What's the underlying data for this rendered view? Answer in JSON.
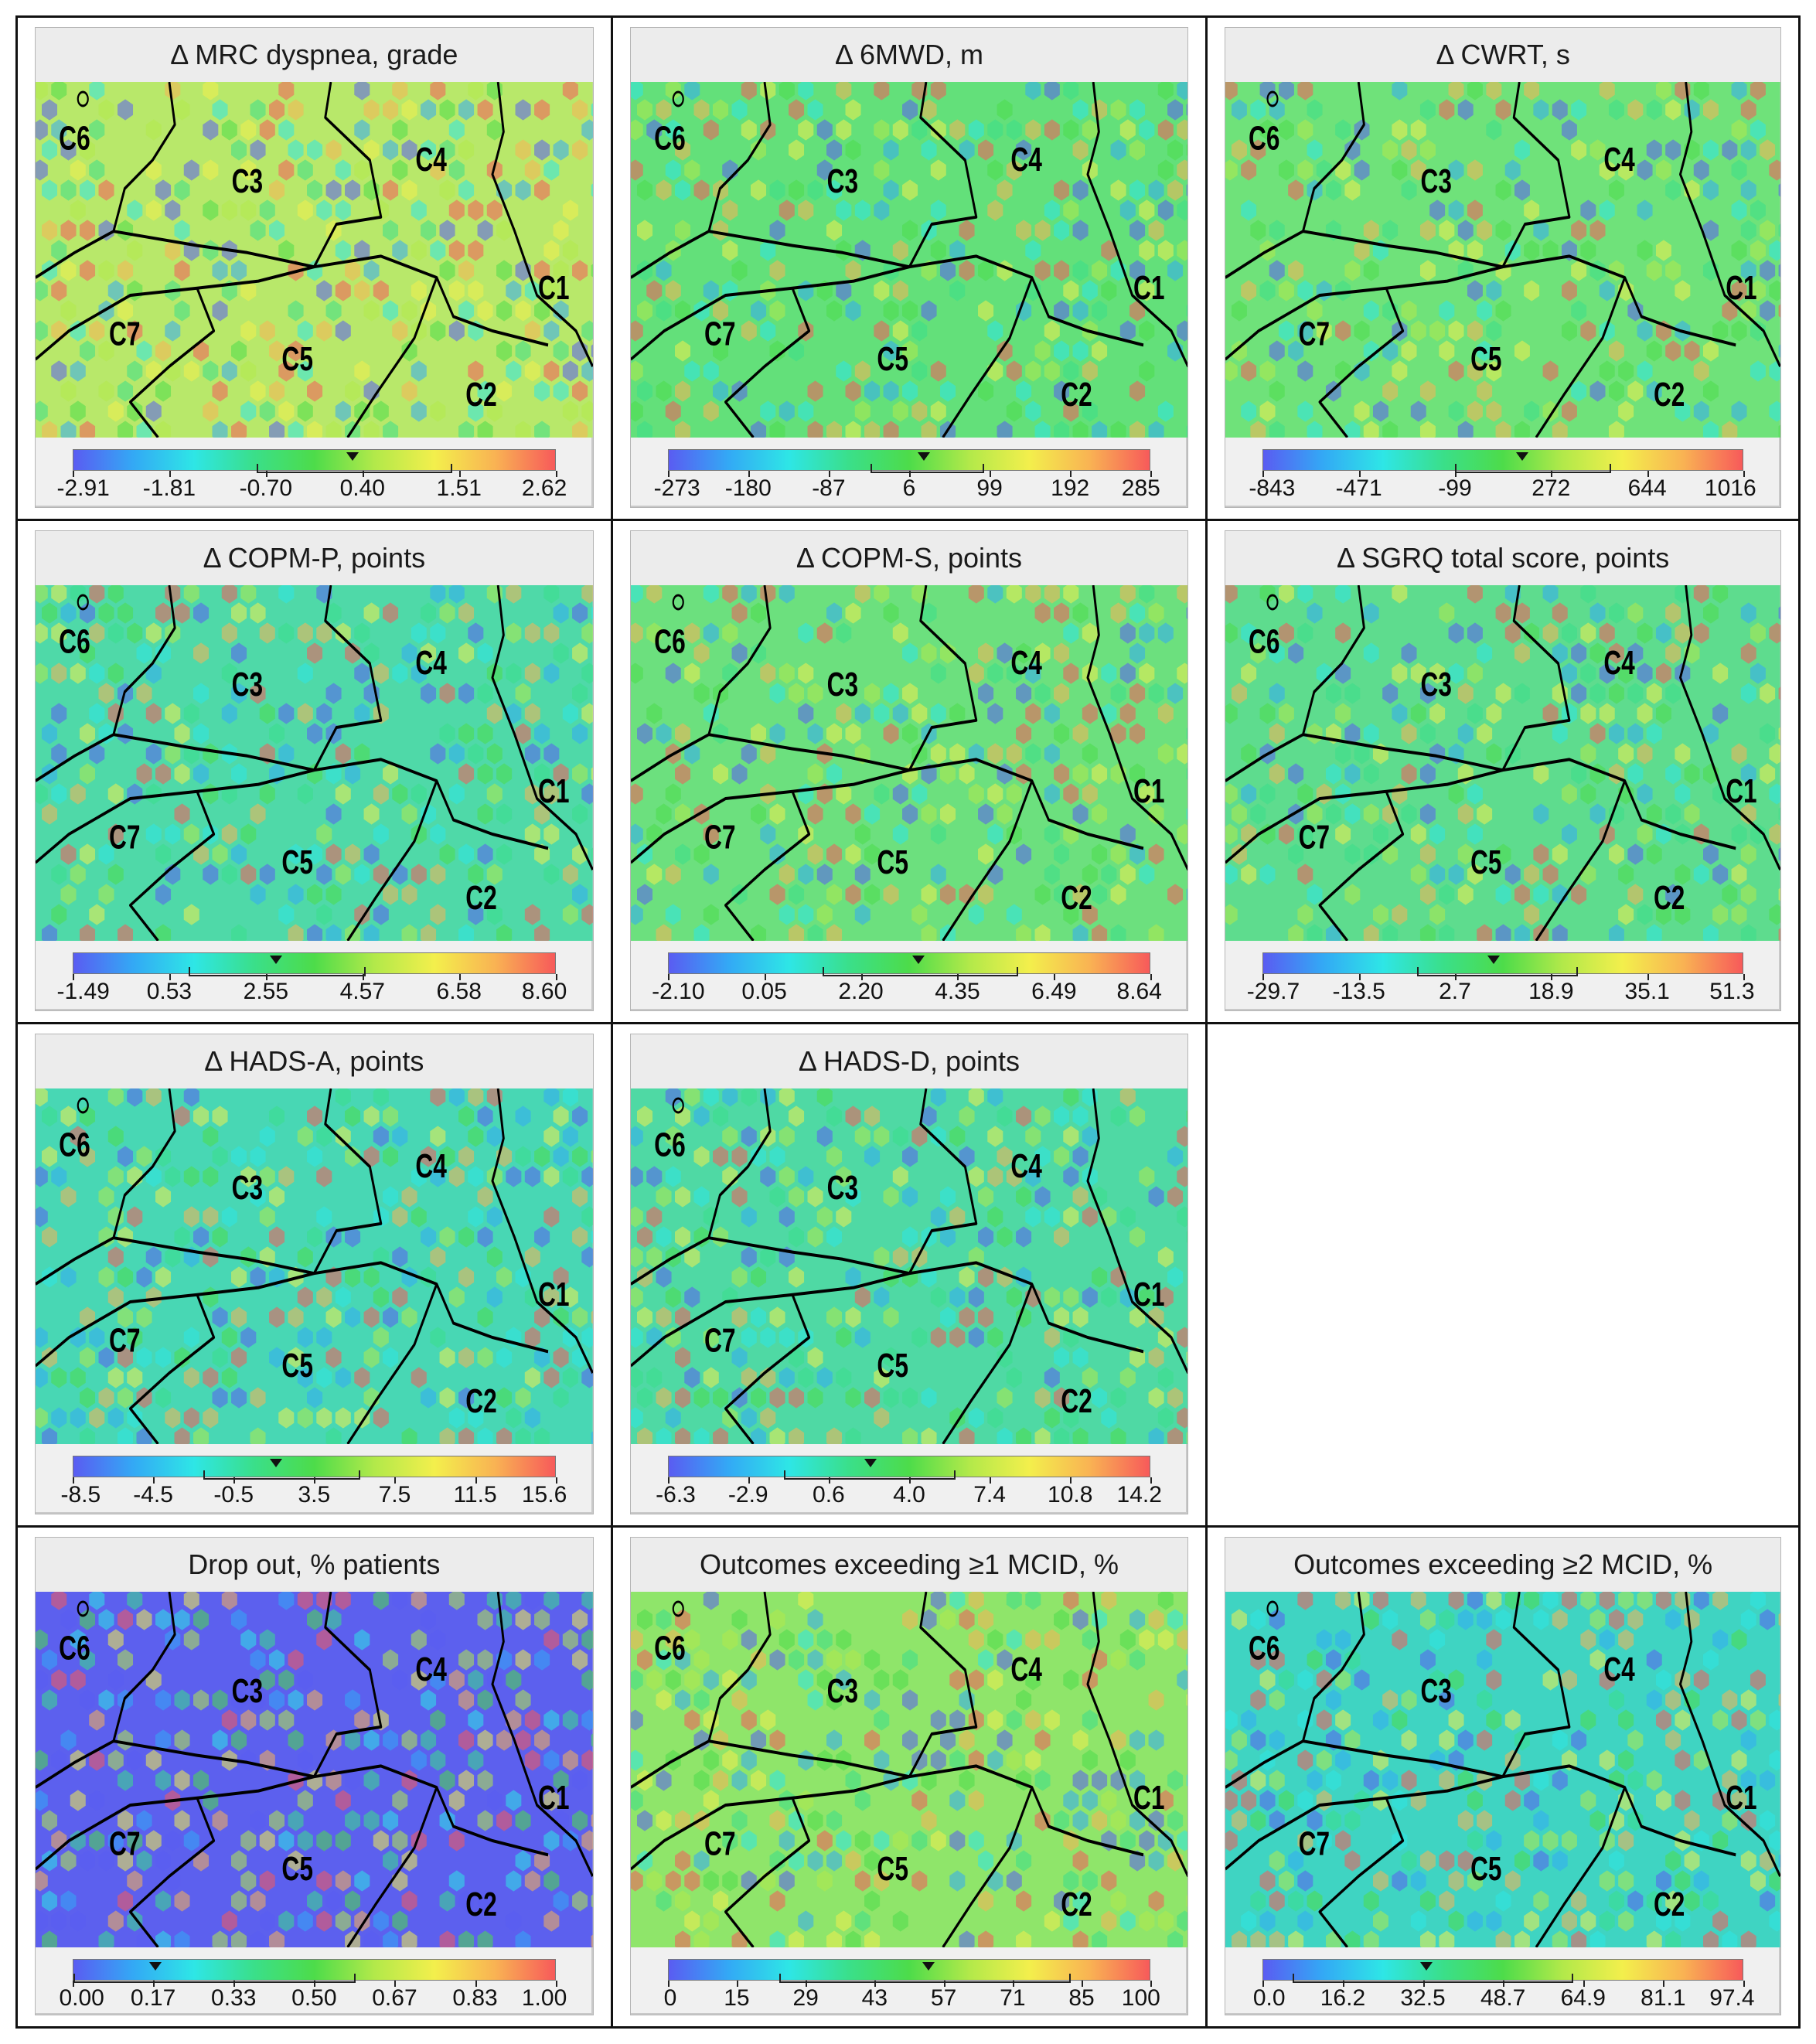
{
  "panels": [
    {
      "title": "Δ MRC dyspnea, grade",
      "ticks": [
        "-2.91",
        "-1.81",
        "-0.70",
        "0.40",
        "1.51",
        "2.62"
      ],
      "marker": 0.58,
      "range": [
        0.38,
        0.78
      ],
      "wash": "#b8e86a"
    },
    {
      "title": "Δ 6MWD, m",
      "ticks": [
        "-273",
        "-180",
        "-87",
        "6",
        "99",
        "192",
        "285"
      ],
      "marker": 0.53,
      "range": [
        0.42,
        0.65
      ],
      "wash": "#63e07a"
    },
    {
      "title": "Δ CWRT, s",
      "ticks": [
        "-843",
        "-471",
        "-99",
        "272",
        "644",
        "1016"
      ],
      "marker": 0.54,
      "range": [
        0.4,
        0.72
      ],
      "wash": "#6fe27a"
    },
    {
      "title": "Δ COPM-P, points",
      "ticks": [
        "-1.49",
        "0.53",
        "2.55",
        "4.57",
        "6.58",
        "8.60"
      ],
      "marker": 0.42,
      "range": [
        0.24,
        0.6
      ],
      "wash": "#4fd9a8"
    },
    {
      "title": "Δ COPM-S, points",
      "ticks": [
        "-2.10",
        "0.05",
        "2.20",
        "4.35",
        "6.49",
        "8.64"
      ],
      "marker": 0.52,
      "range": [
        0.32,
        0.72
      ],
      "wash": "#6ce07e"
    },
    {
      "title": "Δ SGRQ total score, points",
      "ticks": [
        "-29.7",
        "-13.5",
        "2.7",
        "18.9",
        "35.1",
        "51.3"
      ],
      "marker": 0.48,
      "range": [
        0.32,
        0.65
      ],
      "wash": "#5edc8e"
    },
    {
      "title": "Δ HADS-A, points",
      "ticks": [
        "-8.5",
        "-4.5",
        "-0.5",
        "3.5",
        "7.5",
        "11.5",
        "15.6"
      ],
      "marker": 0.42,
      "range": [
        0.27,
        0.59
      ],
      "wash": "#48d7b4"
    },
    {
      "title": "Δ HADS-D, points",
      "ticks": [
        "-6.3",
        "-2.9",
        "0.6",
        "4.0",
        "7.4",
        "10.8",
        "14.2"
      ],
      "marker": 0.42,
      "range": [
        0.24,
        0.59
      ],
      "wash": "#4fd9a4"
    },
    null,
    {
      "title": "Drop out, % patients",
      "ticks": [
        "0.00",
        "0.17",
        "0.33",
        "0.50",
        "0.67",
        "0.83",
        "1.00"
      ],
      "marker": 0.17,
      "range": [
        0.0,
        0.58
      ],
      "wash": "#5c60ee"
    },
    {
      "title": "Outcomes exceeding ≥1 MCID, %",
      "ticks": [
        "0",
        "15",
        "29",
        "43",
        "57",
        "71",
        "85",
        "100"
      ],
      "marker": 0.54,
      "range": [
        0.23,
        0.83
      ],
      "wash": "#8fe56a"
    },
    {
      "title": "Outcomes exceeding ≥2 MCID, %",
      "ticks": [
        "0.0",
        "16.2",
        "32.5",
        "48.7",
        "64.9",
        "81.1",
        "97.4"
      ],
      "marker": 0.34,
      "range": [
        0.06,
        0.64
      ],
      "wash": "#3fd4c2"
    }
  ],
  "clusters": [
    "C1",
    "C2",
    "C3",
    "C4",
    "C5",
    "C6",
    "C7"
  ]
}
